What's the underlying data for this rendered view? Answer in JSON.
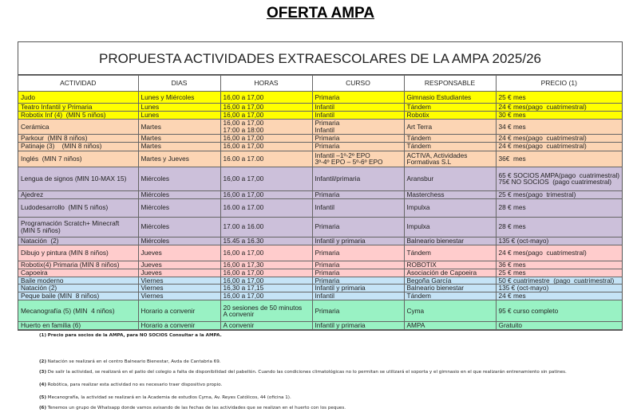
{
  "title": "OFERTA AMPA",
  "table_title": "PROPUESTA ACTIVIDADES EXTRAESCOLARES DE LA AMPA 2025/26",
  "colors": {
    "yellow": "#ffff00",
    "orange": "#fcd5b4",
    "lavender": "#ccc0da",
    "pink": "#ffcccc",
    "blue": "#c5e3f6",
    "green": "#99f2c4"
  },
  "headers": [
    "ACTIVIDAD",
    "DIAS",
    "HORAS",
    "CURSO",
    "RESPONSABLE",
    "PRECIO (1)"
  ],
  "rows": [
    {
      "group": "yellow",
      "cells": [
        "Judo",
        "Lunes y Miércoles",
        "16,00 a 17,00",
        "Primaria",
        "Gimnasio Estudiantes",
        "25 € mes"
      ]
    },
    {
      "group": "yellow",
      "cells": [
        "Teatro Infantil y Primaria",
        "Lunes",
        "16,00 a 17,00",
        "Infantil",
        "Tándem",
        "24 € mes(pago  cuatrimestral)"
      ]
    },
    {
      "group": "yellow",
      "cells": [
        "Robotix Inf (4)  (MIN 5 niños)",
        "Lunes",
        "16,00 a 17,00",
        "Infantil",
        "Robotix",
        "30 € mes"
      ]
    },
    {
      "group": "orange",
      "cells": [
        "Cerámica",
        "Martes",
        "16,00 a 17,00\n17:00 a 18:00",
        "Primaria\nInfantil",
        "Art Terra",
        "34 € mes"
      ]
    },
    {
      "group": "orange",
      "cells": [
        "Parkour  (MIN 8 niños)",
        "Martes",
        "16,00 a 17,00",
        "Primaria",
        "Tándem",
        "24 € mes(pago  cuatrimestral)"
      ]
    },
    {
      "group": "orange",
      "cells": [
        "Patinaje (3)    (MIN 8 niños)",
        "Martes",
        "16,00 a 17,00",
        "Primaria",
        "Tándem",
        "24 € mes(pago  cuatrimestral)"
      ]
    },
    {
      "group": "orange",
      "cells": [
        "Inglés  (MIN 7 niños)",
        "Martes y Jueves",
        "16.00 a 17.00",
        "Infantil –1º-2º EPO\n3º-4º EPO – 5º-6º EPO",
        "ACTIVA, Actividades\nFormativas S.L",
        "36€  mes"
      ]
    },
    {
      "group": "lavender",
      "cells": [
        "Lengua de signos (MIN 10-MAX 15)",
        "Miércoles",
        "16,00 a 17,00",
        "Infantil/primaria",
        "Aransbur",
        "65 € SOCIOS AMPA(pago  cuatrimestral)\n75€ NO SOCIOS  (pago cuatrimestral)"
      ]
    },
    {
      "group": "lavender",
      "cells": [
        "Ajedrez",
        "Miércoles",
        "16,00 a 17,00",
        "Primaria",
        "Masterchess",
        "25 € mes(pago  trimestral)"
      ]
    },
    {
      "group": "lavender",
      "cells": [
        "Ludodesarrollo  (MIN 5 niños)",
        "Miércoles",
        "16.00 a 17.00",
        "Infantil",
        "Impulxa",
        "28 € mes"
      ]
    },
    {
      "group": "lavender",
      "cells": [
        "Programación Scratch+ Minecraft\n(MIN 5 niños)",
        "Miércoles",
        "17.00 a 16.00",
        "Primaria",
        "Impulxa",
        "28 € mes"
      ]
    },
    {
      "group": "lavender",
      "cells": [
        "Natación  (2)",
        "Miércoles",
        "15.45 a 16.30",
        "Infantil y primaria",
        "Balneario bienestar",
        "135 € (oct-mayo)"
      ]
    },
    {
      "group": "pink",
      "cells": [
        "Dibujo y pintura (MIN 8 niños)",
        "Jueves",
        "16,00 a 17,00",
        "Primaria",
        "Tándem",
        "24 € mes(pago  cuatrimestral)"
      ]
    },
    {
      "group": "pink",
      "cells": [
        "Robotix(4) Primaria (MIN 8 niños)",
        "Jueves",
        "16,00 a 17,30",
        "Primaria",
        "ROBOTIX",
        "36 € mes"
      ]
    },
    {
      "group": "pink",
      "cells": [
        "Capoeira",
        "Jueves",
        "16,00 a 17,00",
        "Primaria",
        "Asociación de Capoeira",
        "25 € mes"
      ]
    },
    {
      "group": "blue",
      "cells": [
        "Baile moderno",
        "Viernes",
        "16,00 a 17,00",
        "Primaria",
        "Begoña García",
        "50 € cuatrimestre  (pago  cuatrimestral)"
      ]
    },
    {
      "group": "blue",
      "cells": [
        "Natación (2)",
        "Viernes",
        "16,30 a 17,15",
        "Infantil y primaria",
        "Balneario bienestar",
        "135 € (oct-mayo)"
      ]
    },
    {
      "group": "blue",
      "cells": [
        "Peque baile (MIN  8 niños)",
        "Viernes",
        "16,00 a 17,00",
        "Infantil",
        "Tándem",
        "24 € mes"
      ]
    },
    {
      "group": "green",
      "cells": [
        "Mecanografía (5) (MIN  4 niños)",
        "Horario a convenir",
        "20 sesiones de 50 minutos\nA convenir",
        "Primaria",
        "Cyma",
        "95 € curso completo"
      ]
    },
    {
      "group": "green",
      "cells": [
        "Huerto en familia (6)",
        "Horario a convenir",
        "A convenir",
        "Infantil y primaria",
        "AMPA",
        "Gratuito"
      ]
    }
  ],
  "notes": [
    {
      "num": "(1)",
      "text": "Precio para socios de la AMPA, para NO SOCIOS Consultar  a la AMPA.",
      "bold": true
    },
    {
      "num": "(2)",
      "text": "Natación se realizará en el centro Balneario Bienestar, Avda de Cantabria 69."
    },
    {
      "num": "(3)",
      "text": "De salir la actividad, se realizará en el patio del colegio a falta de disponibilidad del pabellón. Cuando las condiciones climatológicas no lo permitan  se utilizará el soporta y el gimnasio en el que realizarán entrenamiento sin patines."
    },
    {
      "num": "(4)",
      "text": "Robótica, para realizar esta actividad no es necesario traer dispositivo propio."
    },
    {
      "num": "(5)",
      "text": "Mecanografía, la actividad se realizará en la Academia de estudios Cyma, Av. Reyes Católicos, 44 (oficina 1)."
    },
    {
      "num": "(6)",
      "text": "Tenemos un grupo de Whatsapp donde vamos avisando de las fechas de las actividades que se realizan en el huerto con los peques."
    }
  ]
}
